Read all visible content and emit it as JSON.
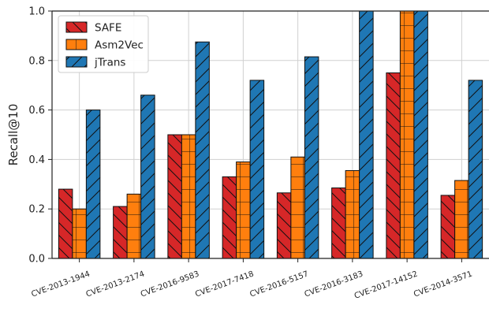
{
  "chart_data": {
    "type": "bar",
    "title": "",
    "xlabel": "",
    "ylabel": "Recall@10",
    "ylim": [
      0,
      1.0
    ],
    "yticks": [
      0.0,
      0.2,
      0.4,
      0.6,
      0.8,
      1.0
    ],
    "ytick_labels": [
      "0.0",
      "0.2",
      "0.4",
      "0.6",
      "0.8",
      "1.0"
    ],
    "grid": true,
    "legend_position": "top-left",
    "categories": [
      "CVE-2013-1944",
      "CVE-2013-2174",
      "CVE-2016-9583",
      "CVE-2017-7418",
      "CVE-2016-5157",
      "CVE-2016-3183",
      "CVE-2017-14152",
      "CVE-2014-3571"
    ],
    "series": [
      {
        "name": "SAFE",
        "color": "#d62728",
        "hatch": "diagonal-back",
        "values": [
          0.28,
          0.21,
          0.5,
          0.33,
          0.265,
          0.285,
          0.75,
          0.255
        ]
      },
      {
        "name": "Asm2Vec",
        "color": "#ff7f0e",
        "hatch": "grid",
        "values": [
          0.2,
          0.26,
          0.5,
          0.39,
          0.41,
          0.355,
          1.0,
          0.315
        ]
      },
      {
        "name": "jTrans",
        "color": "#1f77b4",
        "hatch": "diagonal-forward",
        "values": [
          0.6,
          0.66,
          0.875,
          0.72,
          0.815,
          1.0,
          1.0,
          0.72
        ]
      }
    ]
  }
}
